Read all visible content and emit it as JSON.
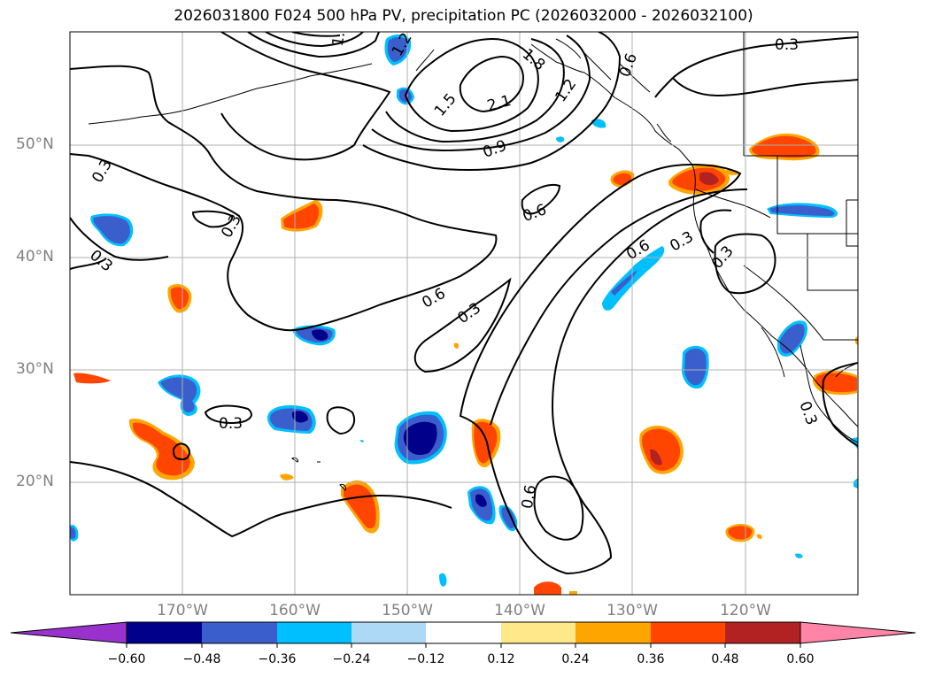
{
  "title": "2026031800 F024 500 hPa PV, precipitation PC (2026032000 - 2026032100)",
  "map": {
    "lat_labels": [
      "50°N",
      "40°N",
      "30°N",
      "20°N"
    ],
    "lon_labels": [
      "170°W",
      "160°W",
      "150°W",
      "140°W",
      "130°W",
      "120°W"
    ],
    "pv_contour_labels": [
      "0.3",
      "0.6",
      "0.9",
      "1.2",
      "1.5",
      "1.8",
      "2.1"
    ]
  },
  "colorbar": {
    "ticks": [
      "−0.60",
      "−0.48",
      "−0.36",
      "−0.24",
      "−0.12",
      "0.12",
      "0.24",
      "0.36",
      "0.48",
      "0.60"
    ],
    "colors": [
      "#9932cc",
      "#00008b",
      "#3a5fcd",
      "#00bfff",
      "#add8f6",
      "#ffffff",
      "#ffe88a",
      "#ffa500",
      "#ff4500",
      "#b22222",
      "#ff85a8"
    ]
  },
  "colors": {
    "negative_dark": "#00008b",
    "negative_mid": "#3a5fcd",
    "negative_light": "#00bfff",
    "positive_light": "#ffa500",
    "positive_mid": "#ff4500",
    "positive_dark": "#b22222"
  }
}
